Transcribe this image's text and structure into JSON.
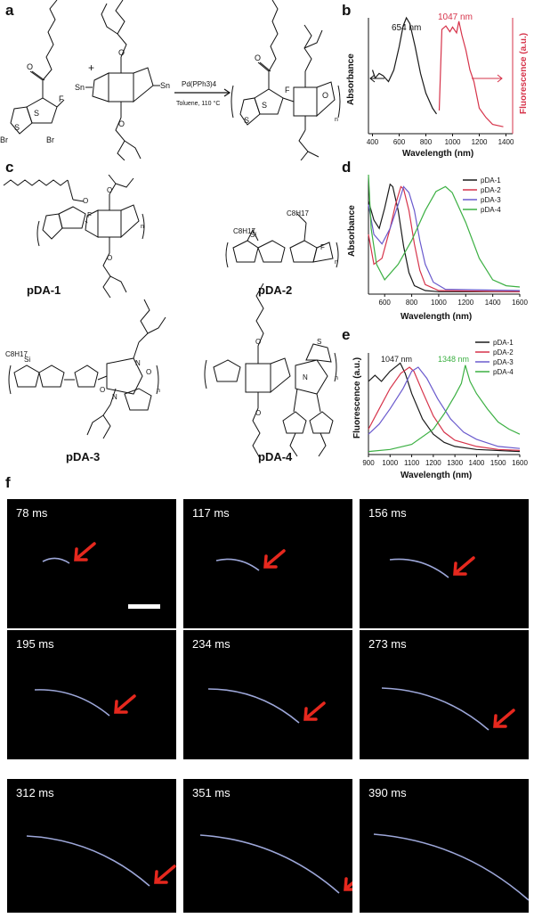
{
  "panel_a": {
    "label": "a",
    "catalyst": "Pd(PPh3)4",
    "conditions": "Toluene, 110 °C",
    "plus": "+",
    "subscript_n": "n",
    "atoms": {
      "S": "S",
      "O": "O",
      "F": "F",
      "Br": "Br",
      "Sn": "Sn"
    }
  },
  "panel_b": {
    "label": "b",
    "xlabel": "Wavelength (nm)",
    "ylabel_left": "Absorbance",
    "ylabel_right": "Fluorescence (a.u.)",
    "annot_abs": "654 nm",
    "annot_fl": "1047 nm",
    "xticks": [
      "400",
      "600",
      "800",
      "1000",
      "1200",
      "1400"
    ]
  },
  "panel_c": {
    "label": "c",
    "structures": [
      "pDA-1",
      "pDA-2",
      "pDA-3",
      "pDA-4"
    ],
    "sub_c8h17": "C8H17",
    "atom_si": "Si",
    "atom_n": "N"
  },
  "panel_d": {
    "label": "d",
    "xlabel": "Wavelength (nm)",
    "ylabel": "Absorbance",
    "xticks": [
      "600",
      "800",
      "1000",
      "1200",
      "1400",
      "1600"
    ],
    "legend": [
      "pDA-1",
      "pDA-2",
      "pDA-3",
      "pDA-4"
    ]
  },
  "panel_e": {
    "label": "e",
    "xlabel": "Wavelength (nm)",
    "ylabel": "Fluorescence (a.u.)",
    "annot_1": "1047 nm",
    "annot_2": "1348 nm",
    "xticks": [
      "900",
      "1000",
      "1100",
      "1200",
      "1300",
      "1400",
      "1500",
      "1600"
    ],
    "legend": [
      "pDA-1",
      "pDA-2",
      "pDA-3",
      "pDA-4"
    ]
  },
  "panel_f": {
    "label": "f",
    "frames": [
      "78 ms",
      "117 ms",
      "156 ms",
      "195 ms",
      "234 ms",
      "273 ms",
      "312 ms",
      "351 ms",
      "390 ms"
    ]
  },
  "colors": {
    "black_curve": "#1a1a1a",
    "red_curve": "#d6334a",
    "blue_curve": "#6a5acd",
    "green_curve": "#3cb043",
    "arrow": "#e6281e",
    "trace": "#b8c4ff"
  },
  "chart_data": [
    {
      "type": "line",
      "panel": "b",
      "xlabel": "Wavelength (nm)",
      "ylabel": "Absorbance",
      "ylabel_right": "Fluorescence (a.u.)",
      "xlim": [
        370,
        1450
      ],
      "series": [
        {
          "x": [
            400,
            420,
            450,
            480,
            520,
            560,
            600,
            630,
            654,
            680,
            720,
            760,
            800,
            850,
            880
          ],
          "y": [
            0.55,
            0.48,
            0.52,
            0.5,
            0.45,
            0.55,
            0.75,
            0.93,
            1.0,
            0.95,
            0.75,
            0.52,
            0.35,
            0.22,
            0.17
          ]
        },
        {
          "x": [
            900,
            920,
            950,
            980,
            1000,
            1030,
            1047,
            1070,
            1100,
            1130,
            1160,
            1200,
            1250,
            1300,
            1380
          ],
          "y": [
            0.2,
            0.9,
            0.93,
            0.88,
            0.92,
            0.87,
            0.97,
            0.85,
            0.72,
            0.55,
            0.45,
            0.22,
            0.14,
            0.08,
            0.06
          ]
        }
      ]
    },
    {
      "type": "line",
      "panel": "d",
      "xlabel": "Wavelength (nm)",
      "ylabel": "Absorbance",
      "xlim": [
        480,
        1600
      ],
      "series": [
        {
          "name": "pDA-1",
          "x": [
            480,
            520,
            560,
            600,
            640,
            660,
            700,
            740,
            780,
            820,
            900,
            1000,
            1600
          ],
          "y": [
            0.78,
            0.62,
            0.55,
            0.72,
            0.92,
            0.9,
            0.7,
            0.4,
            0.18,
            0.07,
            0.03,
            0.02,
            0.02
          ]
        },
        {
          "name": "pDA-2",
          "x": [
            480,
            520,
            580,
            640,
            680,
            720,
            740,
            780,
            820,
            860,
            900,
            1000,
            1600
          ],
          "y": [
            0.5,
            0.25,
            0.3,
            0.55,
            0.75,
            0.9,
            0.88,
            0.7,
            0.42,
            0.2,
            0.08,
            0.03,
            0.02
          ]
        },
        {
          "name": "pDA-3",
          "x": [
            480,
            520,
            580,
            640,
            700,
            740,
            780,
            820,
            860,
            900,
            960,
            1050,
            1600
          ],
          "y": [
            0.75,
            0.5,
            0.42,
            0.55,
            0.75,
            0.9,
            0.85,
            0.7,
            0.45,
            0.25,
            0.1,
            0.04,
            0.03
          ]
        },
        {
          "name": "pDA-4",
          "x": [
            480,
            500,
            540,
            600,
            700,
            800,
            900,
            980,
            1050,
            1100,
            1200,
            1300,
            1400,
            1500,
            1600
          ],
          "y": [
            1.0,
            0.55,
            0.25,
            0.12,
            0.25,
            0.45,
            0.7,
            0.86,
            0.9,
            0.85,
            0.6,
            0.3,
            0.12,
            0.07,
            0.06
          ]
        }
      ]
    },
    {
      "type": "line",
      "panel": "e",
      "xlabel": "Wavelength (nm)",
      "ylabel": "Fluorescence (a.u.)",
      "xlim": [
        900,
        1600
      ],
      "series": [
        {
          "name": "pDA-1",
          "x": [
            900,
            930,
            960,
            1000,
            1047,
            1070,
            1100,
            1150,
            1200,
            1250,
            1300,
            1400,
            1600
          ],
          "y": [
            0.72,
            0.78,
            0.72,
            0.82,
            0.9,
            0.8,
            0.6,
            0.35,
            0.2,
            0.12,
            0.08,
            0.05,
            0.03
          ]
        },
        {
          "name": "pDA-2",
          "x": [
            900,
            950,
            1000,
            1050,
            1090,
            1110,
            1150,
            1200,
            1250,
            1300,
            1400,
            1500,
            1600
          ],
          "y": [
            0.25,
            0.45,
            0.65,
            0.8,
            0.86,
            0.82,
            0.62,
            0.38,
            0.22,
            0.14,
            0.08,
            0.05,
            0.04
          ]
        },
        {
          "name": "pDA-3",
          "x": [
            900,
            950,
            1000,
            1060,
            1100,
            1130,
            1170,
            1220,
            1280,
            1340,
            1400,
            1500,
            1600
          ],
          "y": [
            0.2,
            0.3,
            0.45,
            0.65,
            0.82,
            0.86,
            0.75,
            0.55,
            0.35,
            0.22,
            0.15,
            0.08,
            0.06
          ]
        },
        {
          "name": "pDA-4",
          "x": [
            900,
            1000,
            1100,
            1200,
            1250,
            1300,
            1330,
            1348,
            1370,
            1400,
            1450,
            1500,
            1550,
            1600
          ],
          "y": [
            0.03,
            0.05,
            0.1,
            0.25,
            0.4,
            0.58,
            0.7,
            0.88,
            0.72,
            0.6,
            0.45,
            0.32,
            0.25,
            0.2
          ]
        }
      ]
    }
  ]
}
